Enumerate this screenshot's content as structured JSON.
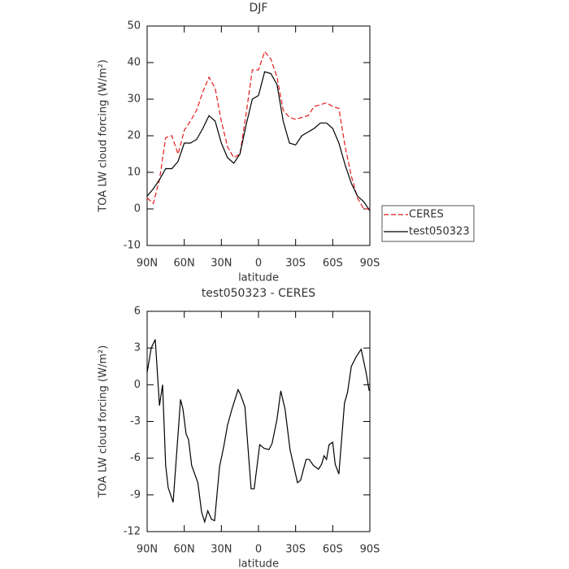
{
  "chart_data": [
    {
      "type": "line",
      "title": "DJF",
      "xlabel": "latitude",
      "ylabel": "TOA LW cloud forcing (W/m²)",
      "x": [
        90,
        85,
        80,
        75,
        70,
        65,
        60,
        55,
        50,
        45,
        40,
        35,
        30,
        25,
        20,
        15,
        10,
        5,
        0,
        -5,
        -10,
        -15,
        -20,
        -25,
        -30,
        -35,
        -40,
        -45,
        -50,
        -55,
        -60,
        -65,
        -70,
        -75,
        -80,
        -85,
        -90
      ],
      "series": [
        {
          "name": "CERES",
          "color": "#e41a1c",
          "linestyle": "dashed",
          "values": [
            3,
            1.5,
            8,
            19.5,
            20,
            15,
            21.5,
            24,
            27,
            32,
            36,
            33,
            24,
            17,
            14,
            15,
            26,
            38,
            38,
            43,
            41,
            36,
            27,
            25,
            24.5,
            25,
            25.5,
            28,
            28.5,
            29,
            28,
            27.5,
            17,
            9,
            3,
            0,
            0
          ]
        },
        {
          "name": "test050323",
          "color": "#000000",
          "linestyle": "solid",
          "values": [
            3.5,
            5.5,
            8,
            11,
            11,
            13,
            18,
            18,
            19,
            22,
            25.5,
            24,
            18,
            14,
            12.5,
            15,
            23,
            30,
            31,
            37.5,
            37,
            34,
            24,
            18,
            17.5,
            20,
            21,
            22,
            23.5,
            23.5,
            22,
            18,
            12,
            7,
            3.5,
            2,
            -0.5
          ]
        }
      ],
      "xlim": [
        90,
        -90
      ],
      "xticks": [
        {
          "value": 90,
          "label": "90N"
        },
        {
          "value": 60,
          "label": "60N"
        },
        {
          "value": 30,
          "label": "30N"
        },
        0,
        {
          "value": -30,
          "label": "30S"
        },
        {
          "value": -60,
          "label": "60S"
        },
        {
          "value": -90,
          "label": "90S"
        }
      ],
      "ylim": [
        -10,
        50
      ],
      "yticks": [
        -10,
        0,
        10,
        20,
        30,
        40,
        50
      ],
      "legend": "outside-right"
    },
    {
      "type": "line",
      "title": "test050323 - CERES",
      "xlabel": "latitude",
      "ylabel": "TOA LW cloud forcing (W/m²)",
      "x": [
        90,
        86.7,
        83.4,
        80,
        77.5,
        75,
        73,
        69,
        63,
        61,
        58.5,
        56.5,
        54,
        49,
        46,
        43.5,
        41,
        38,
        35.5,
        31.5,
        28,
        25,
        21.5,
        16.5,
        14.5,
        11,
        6,
        3.5,
        1,
        -1,
        -4.5,
        -8.5,
        -11,
        -15,
        -18,
        -21.5,
        -25.5,
        -31.5,
        -34,
        -38.5,
        -41,
        -44.5,
        -48.5,
        -51,
        -53,
        -55,
        -57,
        -60,
        -62,
        -65,
        -69.5,
        -72,
        -75,
        -79,
        -83,
        -87,
        -89.5
      ],
      "values": [
        1,
        3,
        3.7,
        -1.7,
        0,
        -6.6,
        -8.4,
        -9.6,
        -1.2,
        -2,
        -4,
        -4.5,
        -6.6,
        -8,
        -10.4,
        -11.2,
        -10.3,
        -11,
        -11.1,
        -6.7,
        -5,
        -3.3,
        -2,
        -0.4,
        -0.8,
        -1.8,
        -8.5,
        -8.5,
        -6.5,
        -4.9,
        -5.2,
        -5.3,
        -4.8,
        -2.8,
        -0.5,
        -2,
        -5.3,
        -8,
        -7.8,
        -6.1,
        -6.1,
        -6.6,
        -6.9,
        -6.5,
        -5.8,
        -6.1,
        -4.9,
        -4.7,
        -6.5,
        -7.3,
        -1.5,
        -0.6,
        1.5,
        2.3,
        2.9,
        1,
        -0.5
      ],
      "color": "#000000",
      "xlim": [
        90,
        -90
      ],
      "xticks": [
        {
          "value": 90,
          "label": "90N"
        },
        {
          "value": 60,
          "label": "60N"
        },
        {
          "value": 30,
          "label": "30N"
        },
        0,
        {
          "value": -30,
          "label": "30S"
        },
        {
          "value": -60,
          "label": "60S"
        },
        {
          "value": -90,
          "label": "90S"
        }
      ],
      "ylim": [
        -12,
        6
      ],
      "yticks": [
        -12,
        -9,
        -6,
        -3,
        0,
        3,
        6
      ]
    }
  ]
}
